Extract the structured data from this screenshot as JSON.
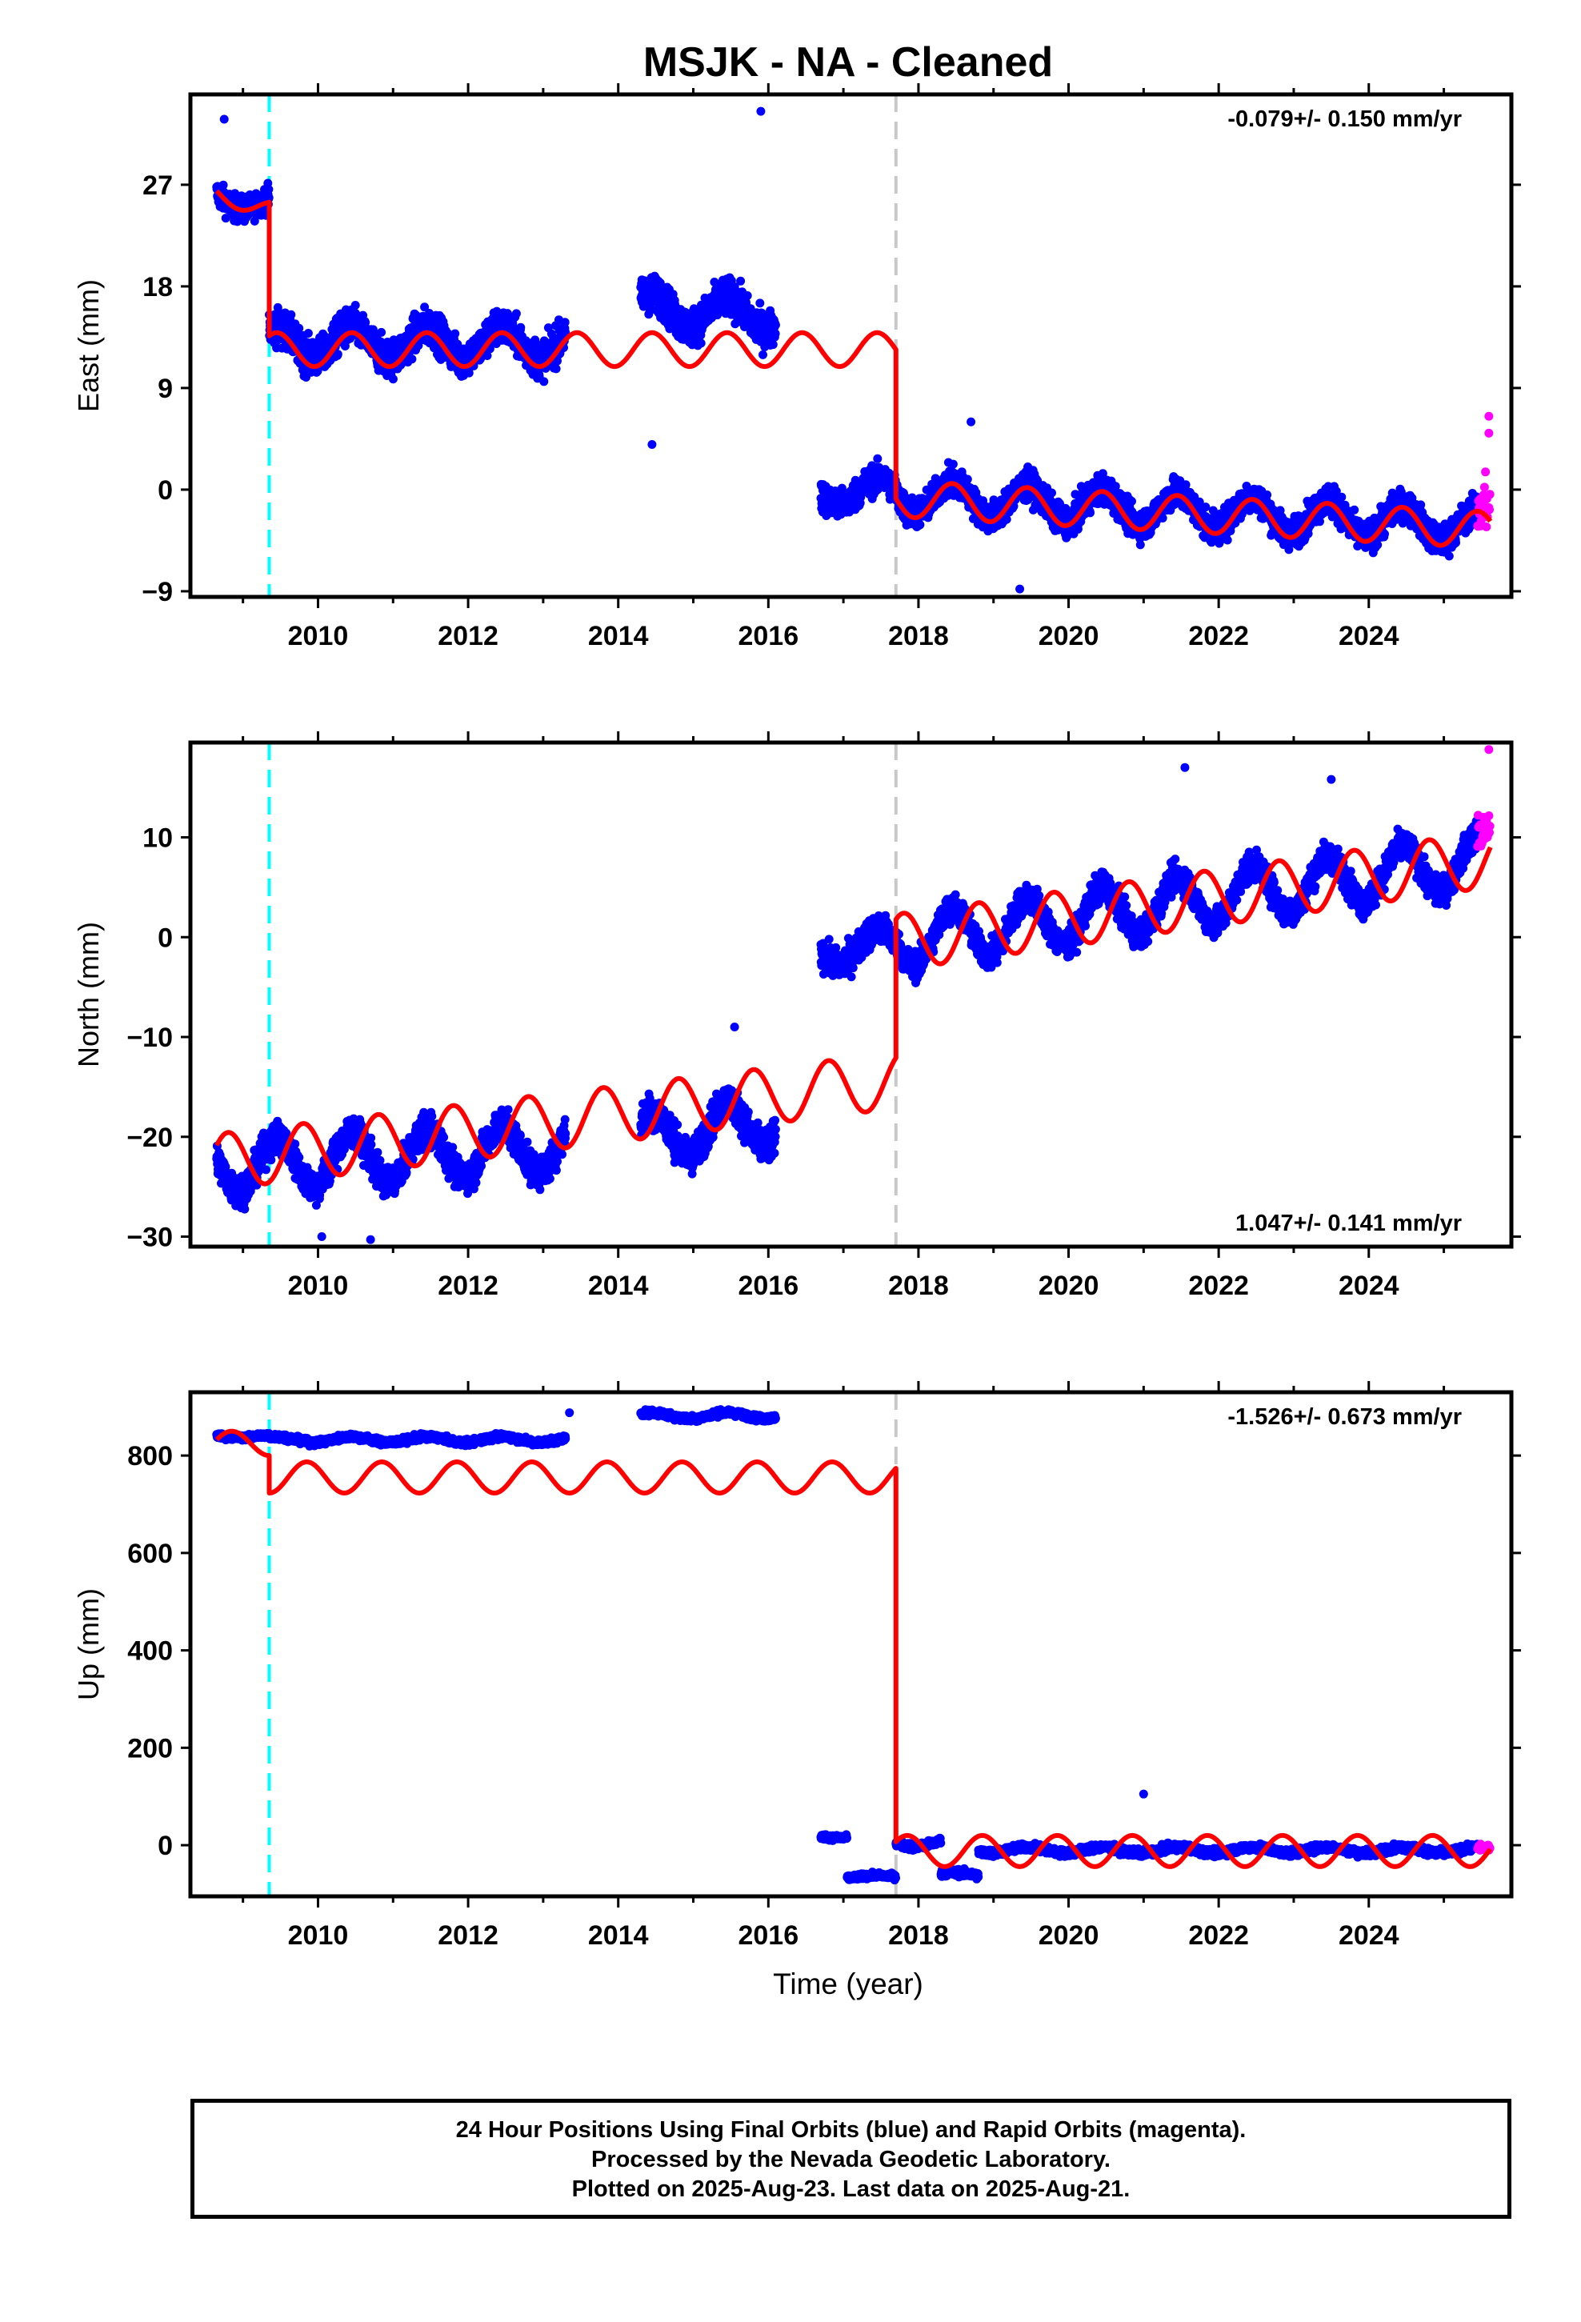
{
  "title": "MSJK  - NA - Cleaned",
  "x_axis_label": "Time (year)",
  "caption": [
    "24 Hour Positions Using Final Orbits (blue) and Rapid Orbits (magenta).",
    "Processed by the Nevada Geodetic Laboratory.",
    "Plotted on 2025-Aug-23. Last data on 2025-Aug-21."
  ],
  "colors": {
    "final_orbits": "#0000ff",
    "rapid_orbits": "#ff00ff",
    "model_fit": "#ff0000",
    "equipment_change_line": "#00ffff",
    "earthquake_line": "#c8c8c8"
  },
  "chart_data": [
    {
      "type": "scatter",
      "panel": "east",
      "ylabel": "East (mm)",
      "velocity_text": "-0.079+/- 0.150 mm/yr",
      "xlim": [
        2008.3,
        2025.9
      ],
      "ylim": [
        -9.5,
        35
      ],
      "yticks": [
        -9,
        0,
        9,
        18,
        27
      ],
      "xticks": [
        2010,
        2012,
        2014,
        2016,
        2018,
        2020,
        2022,
        2024
      ],
      "vertical_lines": [
        {
          "x": 2009.35,
          "style": "dashed",
          "color": "cyan"
        },
        {
          "x": 2017.7,
          "style": "dashed",
          "color": "gray"
        }
      ],
      "data_segments": [
        {
          "start": 2008.65,
          "end": 2009.35,
          "level": 26.0,
          "trend": -1.2,
          "amp": 0.8,
          "noise": 1.1
        },
        {
          "start": 2009.35,
          "end": 2013.3,
          "level": 13.0,
          "trend": 0.0,
          "amp": 1.4,
          "noise": 1.6
        },
        {
          "start": 2014.3,
          "end": 2016.1,
          "level": 16.0,
          "trend": -0.3,
          "amp": 1.4,
          "noise": 1.6
        },
        {
          "start": 2016.7,
          "end": 2017.7,
          "level": -0.5,
          "trend": 0.6,
          "amp": 1.0,
          "noise": 1.3
        },
        {
          "start": 2017.7,
          "end": 2025.45,
          "level": -0.5,
          "trend": -0.35,
          "amp": 1.5,
          "noise": 1.3
        }
      ],
      "rapid_segment": {
        "start": 2025.45,
        "end": 2025.62,
        "level": -1.5,
        "noise": 3.0
      },
      "outliers": [
        {
          "x": 2008.75,
          "y": 32.8
        },
        {
          "x": 2014.45,
          "y": 4.0
        },
        {
          "x": 2015.9,
          "y": 33.5
        },
        {
          "x": 2018.7,
          "y": 6.0
        },
        {
          "x": 2019.35,
          "y": -8.8
        },
        {
          "x": 2025.6,
          "y": 6.5
        },
        {
          "x": 2025.6,
          "y": 5.0
        }
      ],
      "model_fit": [
        {
          "start": 2008.65,
          "end": 2009.35,
          "level": 26.2,
          "trend": -2.0,
          "amp": 0.8,
          "phase": 0.2
        },
        {
          "start": 2009.35,
          "end": 2017.7,
          "level": 12.4,
          "trend": 0.0,
          "amp": 1.5,
          "phase": 0.2
        },
        {
          "start": 2017.7,
          "end": 2025.62,
          "level": -0.8,
          "trend": -0.35,
          "amp": 1.6,
          "phase": 0.2
        }
      ]
    },
    {
      "type": "scatter",
      "panel": "north",
      "ylabel": "North (mm)",
      "velocity_text": "1.047+/- 0.141 mm/yr",
      "xlim": [
        2008.3,
        2025.9
      ],
      "ylim": [
        -31,
        19.5
      ],
      "yticks": [
        -30,
        -20,
        -10,
        0,
        10
      ],
      "xticks": [
        2010,
        2012,
        2014,
        2016,
        2018,
        2020,
        2022,
        2024
      ],
      "vertical_lines": [
        {
          "x": 2009.35,
          "style": "dashed",
          "color": "cyan"
        },
        {
          "x": 2017.7,
          "style": "dashed",
          "color": "gray"
        }
      ],
      "data_segments": [
        {
          "start": 2008.65,
          "end": 2013.3,
          "level": -23.0,
          "trend": 0.45,
          "amp": 2.5,
          "noise": 1.6
        },
        {
          "start": 2014.3,
          "end": 2016.1,
          "level": -20.0,
          "trend": 0.9,
          "amp": 2.5,
          "noise": 1.7
        },
        {
          "start": 2016.7,
          "end": 2017.7,
          "level": -1.5,
          "trend": 1.0,
          "amp": 1.5,
          "noise": 1.5
        },
        {
          "start": 2017.7,
          "end": 2025.45,
          "level": -0.5,
          "trend": 1.05,
          "amp": 2.6,
          "noise": 1.4
        }
      ],
      "rapid_segment": {
        "start": 2025.45,
        "end": 2025.62,
        "level": 10.5,
        "noise": 1.8
      },
      "outliers": [
        {
          "x": 2010.05,
          "y": -30.0
        },
        {
          "x": 2010.7,
          "y": -30.3
        },
        {
          "x": 2021.55,
          "y": 17.0
        },
        {
          "x": 2023.5,
          "y": 15.8
        },
        {
          "x": 2025.6,
          "y": 18.8
        },
        {
          "x": 2015.55,
          "y": -9.0
        }
      ],
      "model_fit": [
        {
          "start": 2008.65,
          "end": 2017.7,
          "level": -22.5,
          "trend": 0.9,
          "amp": 2.8,
          "phase": 0.55
        },
        {
          "start": 2017.7,
          "end": 2025.62,
          "level": -0.5,
          "trend": 1.05,
          "amp": 2.8,
          "phase": 0.55
        }
      ]
    },
    {
      "type": "scatter",
      "panel": "up",
      "ylabel": "Up (mm)",
      "velocity_text": "-1.526+/- 0.673 mm/yr",
      "xlim": [
        2008.3,
        2025.9
      ],
      "ylim": [
        -105,
        930
      ],
      "yticks": [
        0,
        200,
        400,
        600,
        800
      ],
      "xticks": [
        2010,
        2012,
        2014,
        2016,
        2018,
        2020,
        2022,
        2024
      ],
      "vertical_lines": [
        {
          "x": 2009.35,
          "style": "dashed",
          "color": "cyan"
        },
        {
          "x": 2017.7,
          "style": "dashed",
          "color": "gray"
        }
      ],
      "data_segments": [
        {
          "start": 2008.65,
          "end": 2009.35,
          "level": 840,
          "trend": 0.0,
          "amp": 3,
          "noise": 5
        },
        {
          "start": 2009.35,
          "end": 2013.3,
          "level": 833,
          "trend": 0.0,
          "amp": 6,
          "noise": 6
        },
        {
          "start": 2014.3,
          "end": 2016.1,
          "level": 882,
          "trend": 0.0,
          "amp": 6,
          "noise": 6
        },
        {
          "start": 2016.7,
          "end": 2017.05,
          "level": 18,
          "trend": 0.0,
          "amp": 3,
          "noise": 5
        },
        {
          "start": 2017.05,
          "end": 2017.7,
          "level": -65,
          "trend": 0.0,
          "amp": 3,
          "noise": 5
        },
        {
          "start": 2017.7,
          "end": 2018.3,
          "level": 5,
          "trend": 0.0,
          "amp": 8,
          "noise": 7
        },
        {
          "start": 2018.3,
          "end": 2018.8,
          "level": -60,
          "trend": 0.0,
          "amp": 4,
          "noise": 7
        },
        {
          "start": 2018.8,
          "end": 2025.45,
          "level": -10,
          "trend": 0.0,
          "amp": 6,
          "noise": 7
        }
      ],
      "rapid_segment": {
        "start": 2025.45,
        "end": 2025.62,
        "level": -5,
        "noise": 6
      },
      "outliers": [
        {
          "x": 2021.0,
          "y": 105
        },
        {
          "x": 2013.35,
          "y": 888
        }
      ],
      "model_fit": [
        {
          "start": 2008.65,
          "end": 2009.35,
          "level": 825,
          "trend": 0.0,
          "amp": 25,
          "phase": 0.6
        },
        {
          "start": 2009.35,
          "end": 2017.7,
          "level": 755,
          "trend": 0.0,
          "amp": 32,
          "phase": 0.6
        },
        {
          "start": 2017.7,
          "end": 2025.62,
          "level": -12,
          "trend": 0.0,
          "amp": 32,
          "phase": 0.6
        }
      ]
    }
  ]
}
